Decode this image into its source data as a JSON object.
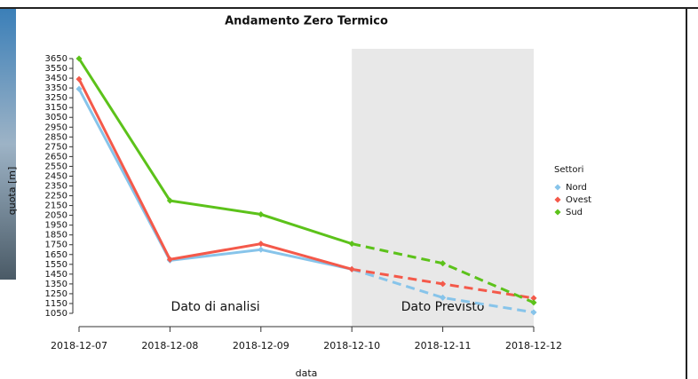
{
  "chart_data": {
    "type": "line",
    "title": "Andamento Zero Termico",
    "x_label": "data",
    "y_label": "quota [m]",
    "categories": [
      "2018-12-07",
      "2018-12-08",
      "2018-12-09",
      "2018-12-10",
      "2018-12-11",
      "2018-12-12"
    ],
    "series": [
      {
        "name": "Nord",
        "color": "#87c4ea",
        "values": [
          3340,
          1590,
          1700,
          1500,
          1210,
          1060
        ]
      },
      {
        "name": "Ovest",
        "color": "#f4594a",
        "values": [
          3440,
          1600,
          1760,
          1500,
          1350,
          1205
        ]
      },
      {
        "name": "Sud",
        "color": "#5cc21a",
        "values": [
          3650,
          2200,
          2060,
          1760,
          1560,
          1160
        ]
      }
    ],
    "ylim": [
      1050,
      3650
    ],
    "yticks": [
      1050,
      1150,
      1250,
      1350,
      1450,
      1550,
      1650,
      1750,
      1850,
      1950,
      2050,
      2150,
      2250,
      2350,
      2450,
      2550,
      2650,
      2750,
      2850,
      2950,
      3050,
      3150,
      3250,
      3350,
      3450,
      3550,
      3650
    ],
    "forecast_from": "2018-12-10",
    "annotations": [
      "Dato di analisi",
      "Dato Previsto"
    ],
    "legend_title": "Settori",
    "legend_position": "right"
  }
}
